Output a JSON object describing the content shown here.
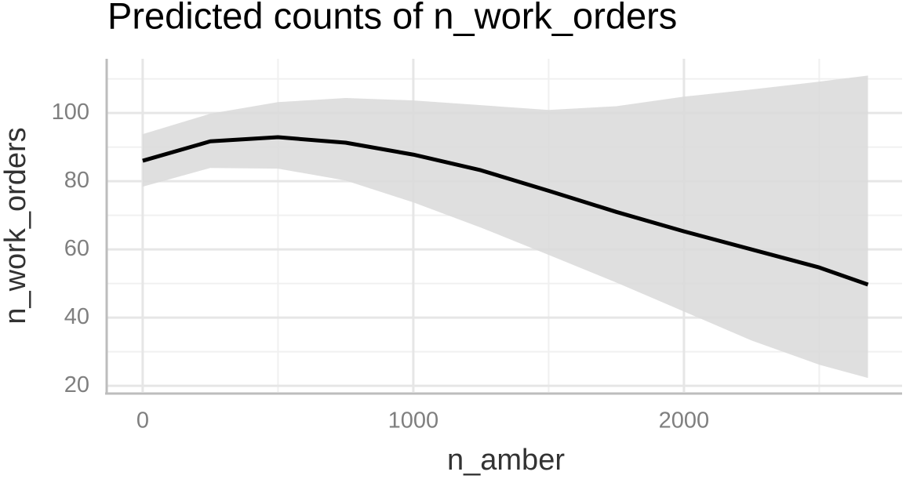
{
  "chart_data": {
    "type": "line",
    "title": "Predicted counts of n_work_orders",
    "x_label": "n_amber",
    "y_label": "n_work_orders",
    "x": [
      0,
      250,
      500,
      750,
      1000,
      1250,
      1500,
      1750,
      2000,
      2250,
      2500,
      2680
    ],
    "values": [
      86,
      91.7,
      92.9,
      91.3,
      87.8,
      83.2,
      77.2,
      71,
      65.3,
      60,
      54.7,
      49.7
    ],
    "band_upper": [
      93.8,
      99.8,
      103.2,
      104.4,
      103.7,
      102.3,
      100.9,
      102,
      104.8,
      106.9,
      109.2,
      111
    ],
    "band_lower": [
      78.4,
      83.9,
      83.7,
      80.2,
      73.8,
      66.4,
      58.4,
      50.3,
      41.8,
      33.3,
      26.2,
      22.3
    ],
    "color": "#000000",
    "band_color": "#d9d9d9",
    "xlim": [
      -133,
      2806
    ],
    "ylim": [
      18.2,
      115.9
    ],
    "xticks": [
      0,
      1000,
      2000
    ],
    "yticks": [
      20,
      40,
      60,
      80,
      100
    ],
    "minor_xticks": [
      500,
      1500,
      2500
    ],
    "minor_yticks": [
      30,
      50,
      70,
      90,
      110
    ],
    "grid": true
  }
}
